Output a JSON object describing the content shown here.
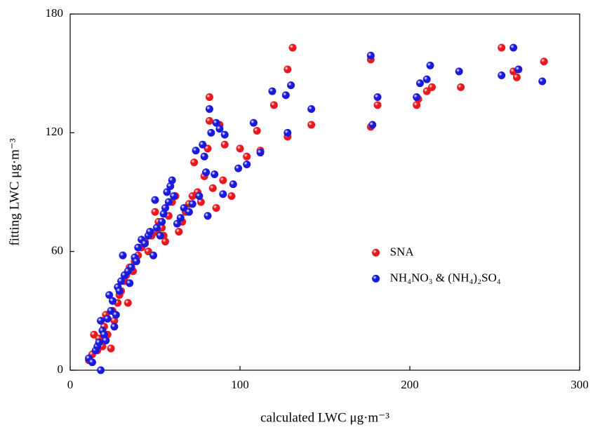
{
  "chart_data": {
    "type": "scatter",
    "x_label": "calculated LWC μg·m⁻³",
    "y_label": "fitting LWC μg·m⁻³",
    "xlim": [
      0,
      300
    ],
    "ylim": [
      0,
      180
    ],
    "xticks": [
      0,
      100,
      200,
      300
    ],
    "yticks": [
      0,
      60,
      120,
      180
    ],
    "legend": "center-right",
    "series": [
      {
        "name": "SNA",
        "color": "#e8181e",
        "x": [
          11,
          13,
          14,
          16,
          17,
          19,
          20,
          21,
          22,
          24,
          25,
          26,
          28,
          29,
          30,
          32,
          33,
          34,
          35,
          37,
          38,
          40,
          42,
          44,
          46,
          48,
          50,
          51,
          52,
          54,
          55,
          56,
          58,
          60,
          62,
          64,
          66,
          68,
          70,
          72,
          73,
          75,
          77,
          79,
          80,
          81,
          82,
          82,
          84,
          86,
          88,
          90,
          91,
          95,
          100,
          104,
          112,
          110,
          120,
          128,
          128,
          131,
          142,
          177,
          177,
          181,
          204,
          205,
          210,
          213,
          230,
          254,
          261,
          263,
          279
        ],
        "values": [
          5,
          8,
          18,
          10,
          16,
          12,
          22,
          28,
          18,
          11,
          30,
          25,
          34,
          38,
          40,
          45,
          48,
          34,
          52,
          50,
          55,
          58,
          62,
          65,
          60,
          68,
          80,
          70,
          75,
          72,
          68,
          65,
          78,
          85,
          88,
          70,
          75,
          80,
          84,
          88,
          105,
          90,
          85,
          98,
          100,
          112,
          138,
          126,
          92,
          82,
          124,
          96,
          114,
          88,
          112,
          108,
          111,
          121,
          134,
          152,
          118,
          163,
          124,
          157,
          123,
          134,
          134,
          137,
          141,
          143,
          143,
          163,
          151,
          148,
          156
        ]
      },
      {
        "name": "NH₄NO₃ & (NH₄)₂SO₄",
        "color": "#1a1adc",
        "x": [
          11,
          13,
          15,
          16,
          17,
          18,
          18,
          19,
          20,
          21,
          22,
          23,
          24,
          25,
          26,
          27,
          28,
          29,
          30,
          31,
          32,
          34,
          35,
          36,
          38,
          39,
          40,
          42,
          44,
          46,
          47,
          49,
          50,
          51,
          53,
          54,
          55,
          56,
          57,
          58,
          59,
          60,
          61,
          63,
          65,
          67,
          70,
          72,
          74,
          76,
          78,
          79,
          80,
          81,
          82,
          83,
          85,
          86,
          88,
          90,
          91,
          96,
          99,
          104,
          108,
          112,
          119,
          127,
          128,
          130,
          142,
          177,
          178,
          181,
          204,
          206,
          210,
          212,
          229,
          254,
          261,
          264,
          278
        ],
        "values": [
          6,
          4,
          10,
          12,
          14,
          0,
          25,
          20,
          18,
          15,
          26,
          38,
          30,
          35,
          22,
          28,
          42,
          40,
          45,
          58,
          48,
          50,
          44,
          52,
          57,
          55,
          62,
          66,
          64,
          68,
          70,
          58,
          86,
          72,
          68,
          75,
          79,
          82,
          90,
          85,
          93,
          96,
          88,
          74,
          77,
          82,
          80,
          84,
          111,
          88,
          114,
          108,
          100,
          78,
          132,
          120,
          99,
          125,
          122,
          89,
          119,
          94,
          102,
          104,
          125,
          110,
          141,
          139,
          120,
          144,
          132,
          159,
          124,
          138,
          138,
          145,
          147,
          154,
          151,
          149,
          163,
          152,
          146
        ]
      }
    ]
  }
}
